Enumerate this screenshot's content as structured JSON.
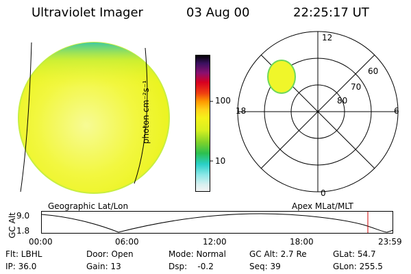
{
  "header": {
    "title": "Ultraviolet Imager",
    "date": "03 Aug 00",
    "time": "22:25:17 UT"
  },
  "colorbar": {
    "unit_label": "photon cm⁻²s⁻¹",
    "tick_100": "100",
    "tick_10": "10"
  },
  "polar": {
    "mlt_top": "12",
    "mlt_left": "18",
    "mlt_right": "6",
    "mlt_bottom": "0",
    "lat_60": "60",
    "lat_70": "70",
    "lat_80": "80"
  },
  "labels": {
    "geographic": "Geographic Lat/Lon",
    "apex": "Apex MLat/MLT"
  },
  "altitude_plot": {
    "ylabel": "GC Alt",
    "y_max": "9.0",
    "y_min": "1.8",
    "x_ticks": [
      "00:00",
      "06:00",
      "12:00",
      "18:00",
      "23:59"
    ]
  },
  "info": {
    "filter": "Flt: LBHL",
    "door": "Door: Open",
    "mode": "Mode: Normal",
    "gc_alt": "GC Alt: 2.7 Re",
    "glat": "GLat:  54.7",
    "ip": "IP: 36.0",
    "gain": "Gain: 13",
    "dsp": "Dsp:    -0.2",
    "seq": "Seq: 39",
    "glon": "GLon: 255.5"
  },
  "colors": {
    "earth_fill": "#f0f62a",
    "earth_pale": "#f7fb8a",
    "limb_edge": "#5fd07a",
    "marker": "#cc0000"
  }
}
